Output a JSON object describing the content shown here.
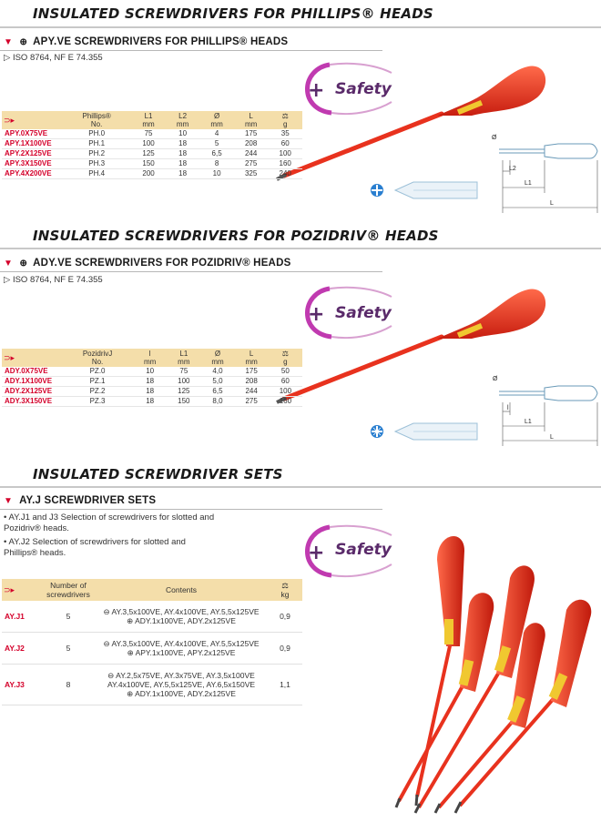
{
  "sections": {
    "phillips": {
      "banner": "INSULATED SCREWDRIVERS FOR PHILLIPS® HEADS",
      "subtitle": "APY.VE SCREWDRIVERS FOR PHILLIPS® HEADS",
      "iso": "ISO 8764, NF E 74.355",
      "safety": "Safety",
      "table": {
        "headers": [
          [
            "",
            ""
          ],
          [
            "Phillips®",
            "No."
          ],
          [
            "L1",
            "mm"
          ],
          [
            "L2",
            "mm"
          ],
          [
            "Ø",
            "mm"
          ],
          [
            "L",
            "mm"
          ],
          [
            "",
            "g"
          ]
        ],
        "rows": [
          [
            "APY.0X75VE",
            "PH.0",
            "75",
            "10",
            "4",
            "175",
            "35"
          ],
          [
            "APY.1X100VE",
            "PH.1",
            "100",
            "18",
            "5",
            "208",
            "60"
          ],
          [
            "APY.2X125VE",
            "PH.2",
            "125",
            "18",
            "6,5",
            "244",
            "100"
          ],
          [
            "APY.3X150VE",
            "PH.3",
            "150",
            "18",
            "8",
            "275",
            "160"
          ],
          [
            "APY.4X200VE",
            "PH.4",
            "200",
            "18",
            "10",
            "325",
            "240"
          ]
        ]
      },
      "diagram_labels": [
        "Ø",
        "L2",
        "L1",
        "L"
      ]
    },
    "pozidriv": {
      "banner": "INSULATED SCREWDRIVERS FOR POZIDRIV® HEADS",
      "subtitle": "ADY.VE SCREWDRIVERS FOR POZIDRIV® HEADS",
      "iso": "ISO 8764, NF E 74.355",
      "safety": "Safety",
      "table": {
        "headers": [
          [
            "",
            ""
          ],
          [
            "PozidrivJ",
            "No."
          ],
          [
            "l",
            "mm"
          ],
          [
            "L1",
            "mm"
          ],
          [
            "Ø",
            "mm"
          ],
          [
            "L",
            "mm"
          ],
          [
            "",
            "g"
          ]
        ],
        "rows": [
          [
            "ADY.0X75VE",
            "PZ.0",
            "10",
            "75",
            "4,0",
            "175",
            "50"
          ],
          [
            "ADY.1X100VE",
            "PZ.1",
            "18",
            "100",
            "5,0",
            "208",
            "60"
          ],
          [
            "ADY.2X125VE",
            "PZ.2",
            "18",
            "125",
            "6,5",
            "244",
            "100"
          ],
          [
            "ADY.3X150VE",
            "PZ.3",
            "18",
            "150",
            "8,0",
            "275",
            "160"
          ]
        ]
      },
      "diagram_labels": [
        "Ø",
        "l",
        "L1",
        "L"
      ]
    },
    "sets": {
      "banner": "INSULATED SCREWDRIVER SETS",
      "subtitle": "AY.J SCREWDRIVER SETS",
      "bullets": [
        "• AY.J1 and J3 Selection of screwdrivers for slotted and Pozidriv® heads.",
        "• AY.J2 Selection of screwdrivers for slotted and Phillips® heads."
      ],
      "safety": "Safety",
      "table": {
        "headers": [
          "",
          "Number of\nscrewdrivers",
          "Contents",
          "kg"
        ],
        "rows": [
          {
            "ref": "AY.J1",
            "count": "5",
            "lines": [
              "⊖ AY.3,5x100VE, AY.4x100VE, AY.5,5x125VE",
              "⊕ ADY.1x100VE, ADY.2x125VE"
            ],
            "kg": "0,9"
          },
          {
            "ref": "AY.J2",
            "count": "5",
            "lines": [
              "⊖ AY.3,5x100VE, AY.4x100VE, AY.5,5x125VE",
              "⊕ APY.1x100VE, APY.2x125VE"
            ],
            "kg": "0,9"
          },
          {
            "ref": "AY.J3",
            "count": "8",
            "lines": [
              "⊖ AY.2,5x75VE, AY.3x75VE, AY.3,5x100VE",
              "AY.4x100VE, AY.5,5x125VE, AY.6,5x150VE",
              "⊕ ADY.1x100VE, ADY.2x125VE"
            ],
            "kg": "1,1"
          }
        ]
      }
    }
  },
  "colors": {
    "accent_red": "#d4002a",
    "header_tan": "#f4deaa",
    "safety_purple": "#5a2a6a",
    "handle_red": "#e8321e"
  }
}
